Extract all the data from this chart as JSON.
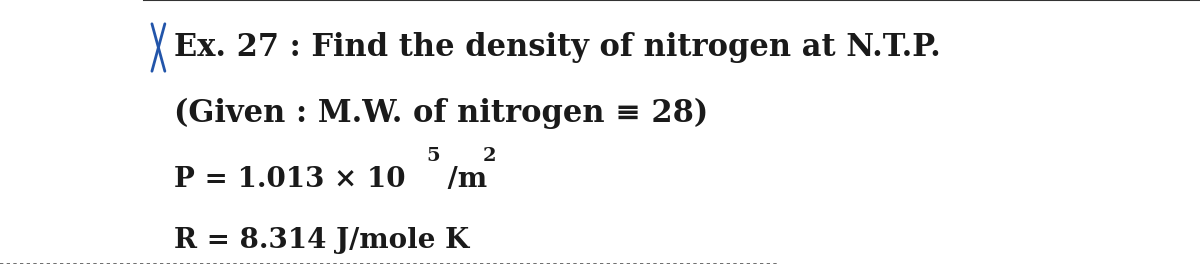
{
  "bg_color": "#ffffff",
  "line1": "Ex. 27 : Find the density of nitrogen at N.T.P.",
  "line1_prefix": "X",
  "line2": "(Given : M.W. of nitrogen ≡ 28)",
  "line3": "P = 1.013 × 10",
  "line3_sup": "5",
  "line3_suffix": " /m",
  "line3_sup2": "2",
  "line4": "R = 8.314 J/mole K",
  "font_size_main": 22,
  "font_size_lines": 20,
  "text_color": "#1a1a1a",
  "dashed_line_color": "#555555",
  "top_line_color": "#333333",
  "x_color": "#2255aa"
}
